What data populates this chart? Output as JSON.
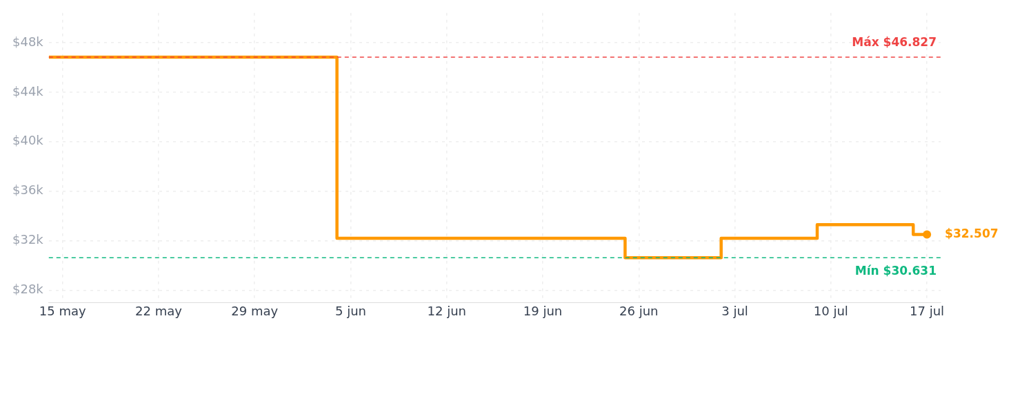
{
  "chart_data": {
    "type": "step",
    "x": [
      "--05-14",
      "--06-04",
      "--06-25",
      "--07-02",
      "--07-09",
      "--07-16",
      "--07-17"
    ],
    "series": [
      {
        "color": "#ff9900",
        "values": [
          46827,
          32200,
          30631,
          32200,
          33300,
          32507,
          32507
        ]
      }
    ],
    "xlim": [
      "--05-14",
      "--07-18"
    ],
    "xticks": [
      {
        "value": "--05-15",
        "label": "15 may"
      },
      {
        "value": "--05-22",
        "label": "22 may"
      },
      {
        "value": "--05-29",
        "label": "29 may"
      },
      {
        "value": "--06-05",
        "label": "5 jun"
      },
      {
        "value": "--06-12",
        "label": "12 jun"
      },
      {
        "value": "--06-19",
        "label": "19 jun"
      },
      {
        "value": "--06-26",
        "label": "26 jun"
      },
      {
        "value": "--07-03",
        "label": "3 jul"
      },
      {
        "value": "--07-10",
        "label": "10 jul"
      },
      {
        "value": "--07-17",
        "label": "17 jul"
      }
    ],
    "ylim": [
      27000,
      50400
    ],
    "yticks": [
      {
        "value": 28000,
        "label": "$28k"
      },
      {
        "value": 32000,
        "label": "$32k"
      },
      {
        "value": 36000,
        "label": "$36k"
      },
      {
        "value": 40000,
        "label": "$40k"
      },
      {
        "value": 44000,
        "label": "$44k"
      },
      {
        "value": 48000,
        "label": "$48k"
      }
    ],
    "grid": true,
    "marker": "none",
    "line_style": "solid",
    "ref_lines": [
      {
        "axis": "y",
        "value": 46827,
        "label": "Máx $46.827",
        "color": "#ef4444",
        "line_style": "dashed"
      },
      {
        "axis": "y",
        "value": 30631,
        "label": "Mín $30.631",
        "color": "#10b981",
        "line_style": "dashed"
      }
    ],
    "annotations": [
      {
        "text": "$32.507",
        "x": "--07-17",
        "y": 32507
      }
    ]
  }
}
